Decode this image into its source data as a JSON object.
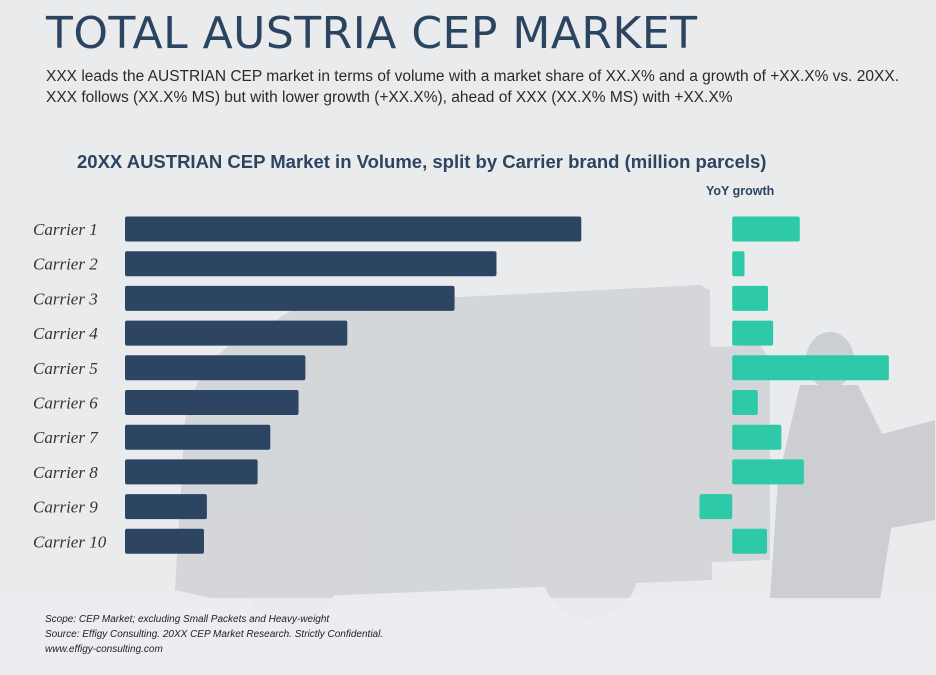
{
  "header": {
    "title": "TOTAL AUSTRIA CEP MARKET",
    "subtitle": "XXX leads the AUSTRIAN CEP market in terms of volume with a market share of XX.X% and a growth of +XX.X% vs. 20XX. XXX follows (XX.X% MS) but with lower growth (+XX.X%), ahead of XXX (XX.X% MS) with +XX.X%"
  },
  "chart_data": {
    "type": "bar",
    "orientation": "horizontal",
    "title": "20XX AUSTRIAN CEP Market in Volume, split by Carrier brand (million parcels)",
    "categories": [
      "Carrier 1",
      "Carrier 2",
      "Carrier 3",
      "Carrier 4",
      "Carrier 5",
      "Carrier 6",
      "Carrier 7",
      "Carrier 8",
      "Carrier 9",
      "Carrier 10"
    ],
    "series": [
      {
        "name": "",
        "values": [
          46.8,
          38.1,
          33.8,
          22.8,
          18.5,
          17.8,
          14.9,
          13.6,
          8.4,
          8.1
        ]
      },
      {
        "name": "YoY growth",
        "values": [
          6.6,
          1.2,
          3.5,
          4.0,
          15.3,
          2.5,
          4.8,
          7.0,
          -3.2,
          3.4
        ]
      }
    ],
    "colors": {
      "volume": "#2b4562",
      "growth": "#2ec9a8"
    },
    "xlim_volume": [
      0,
      60
    ],
    "xlim_growth": [
      -5,
      20
    ],
    "grid": false,
    "legend": "none"
  },
  "footer": {
    "scope": "Scope: CEP Market; excluding Small Packets and Heavy-weight",
    "source": "Source: Effigy Consulting. 20XX CEP Market Research. Strictly Confidential.",
    "url": "www.effigy-consulting.com"
  }
}
